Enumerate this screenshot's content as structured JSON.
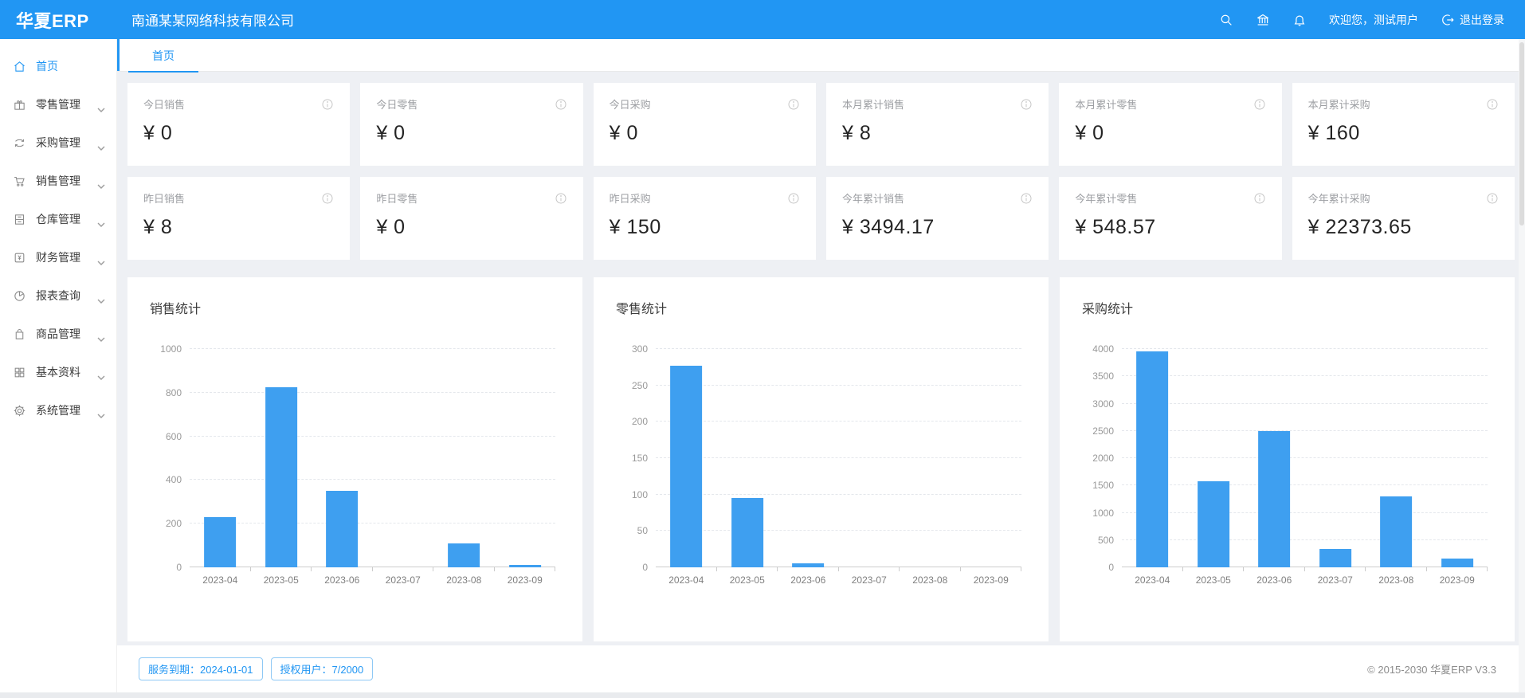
{
  "header": {
    "logo": "华夏ERP",
    "company": "南通某某网络科技有限公司",
    "welcome": "欢迎您，测试用户",
    "logout_label": "退出登录"
  },
  "icons": {
    "header": [
      "search-icon",
      "bank-icon",
      "bell-icon",
      "logout-icon"
    ],
    "sidebar": [
      "home-icon",
      "gift-icon",
      "sync-icon",
      "cart-icon",
      "warehouse-icon",
      "finance-icon",
      "pie-chart-icon",
      "bag-icon",
      "grid-icon",
      "gear-icon"
    ],
    "card": "info-circle-icon",
    "expand": "chevron-down-icon"
  },
  "sidebar": {
    "items": [
      {
        "label": "首页",
        "icon": "home-icon",
        "active": true,
        "expandable": false
      },
      {
        "label": "零售管理",
        "icon": "gift-icon",
        "active": false,
        "expandable": true
      },
      {
        "label": "采购管理",
        "icon": "sync-icon",
        "active": false,
        "expandable": true
      },
      {
        "label": "销售管理",
        "icon": "cart-icon",
        "active": false,
        "expandable": true
      },
      {
        "label": "仓库管理",
        "icon": "warehouse-icon",
        "active": false,
        "expandable": true
      },
      {
        "label": "财务管理",
        "icon": "finance-icon",
        "active": false,
        "expandable": true
      },
      {
        "label": "报表查询",
        "icon": "pie-chart-icon",
        "active": false,
        "expandable": true
      },
      {
        "label": "商品管理",
        "icon": "bag-icon",
        "active": false,
        "expandable": true
      },
      {
        "label": "基本资料",
        "icon": "grid-icon",
        "active": false,
        "expandable": true
      },
      {
        "label": "系统管理",
        "icon": "gear-icon",
        "active": false,
        "expandable": true
      }
    ]
  },
  "tabs": [
    {
      "label": "首页",
      "active": true
    }
  ],
  "stats": {
    "row1": [
      {
        "label": "今日销售",
        "value": "¥ 0"
      },
      {
        "label": "今日零售",
        "value": "¥ 0"
      },
      {
        "label": "今日采购",
        "value": "¥ 0"
      },
      {
        "label": "本月累计销售",
        "value": "¥ 8"
      },
      {
        "label": "本月累计零售",
        "value": "¥ 0"
      },
      {
        "label": "本月累计采购",
        "value": "¥ 160"
      }
    ],
    "row2": [
      {
        "label": "昨日销售",
        "value": "¥ 8"
      },
      {
        "label": "昨日零售",
        "value": "¥ 0"
      },
      {
        "label": "昨日采购",
        "value": "¥ 150"
      },
      {
        "label": "今年累计销售",
        "value": "¥ 3494.17"
      },
      {
        "label": "今年累计零售",
        "value": "¥ 548.57"
      },
      {
        "label": "今年累计采购",
        "value": "¥ 22373.65"
      }
    ]
  },
  "chart_data": [
    {
      "type": "bar",
      "title": "销售统计",
      "categories": [
        "2023-04",
        "2023-05",
        "2023-06",
        "2023-07",
        "2023-08",
        "2023-09"
      ],
      "values": [
        230,
        825,
        350,
        0,
        110,
        10
      ],
      "xlabel": "",
      "ylabel": "",
      "ylim": [
        0,
        1000
      ],
      "ytick_step": 200,
      "grid": "dashed-horizontal",
      "legend": "none",
      "bar_color": "#3e9ff0"
    },
    {
      "type": "bar",
      "title": "零售统计",
      "categories": [
        "2023-04",
        "2023-05",
        "2023-06",
        "2023-07",
        "2023-08",
        "2023-09"
      ],
      "values": [
        277,
        95,
        5,
        0,
        0,
        0
      ],
      "xlabel": "",
      "ylabel": "",
      "ylim": [
        0,
        300
      ],
      "ytick_step": 50,
      "grid": "dashed-horizontal",
      "legend": "none",
      "bar_color": "#3e9ff0"
    },
    {
      "type": "bar",
      "title": "采购统计",
      "categories": [
        "2023-04",
        "2023-05",
        "2023-06",
        "2023-07",
        "2023-08",
        "2023-09"
      ],
      "values": [
        3950,
        1580,
        2500,
        330,
        1300,
        160
      ],
      "xlabel": "",
      "ylabel": "",
      "ylim": [
        0,
        4000
      ],
      "ytick_step": 500,
      "grid": "dashed-horizontal",
      "legend": "none",
      "bar_color": "#3e9ff0"
    }
  ],
  "footer": {
    "badges": [
      {
        "label": "服务到期：2024-01-01"
      },
      {
        "label": "授权用户：7/2000"
      }
    ],
    "copyright": "© 2015-2030 华夏ERP V3.3"
  },
  "colors": {
    "primary": "#2196f3",
    "bar": "#3e9ff0",
    "content_bg": "#eef0f4",
    "card_label": "#9d9fa3",
    "axis_text": "#999999"
  }
}
